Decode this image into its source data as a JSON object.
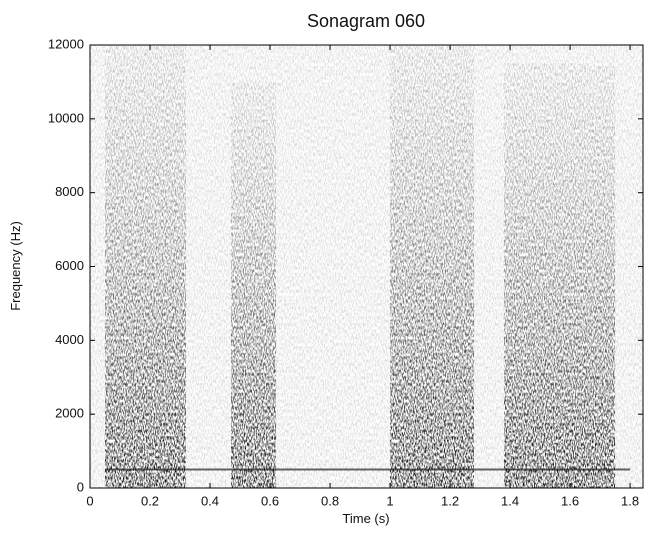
{
  "chart_data": {
    "type": "spectrogram",
    "title": "Sonagram 060",
    "x_label": "Time (s)",
    "y_label": "Frequency (Hz)",
    "xlim": [
      0,
      1.843
    ],
    "ylim": [
      0,
      12000
    ],
    "xticks": [
      0,
      0.2,
      0.4,
      0.6,
      0.8,
      1,
      1.2,
      1.4,
      1.6,
      1.8
    ],
    "yticks": [
      0,
      2000,
      4000,
      6000,
      8000,
      10000,
      12000
    ],
    "color": "#000000",
    "bursts": [
      {
        "start": 0.05,
        "end": 0.32,
        "top": 12000
      },
      {
        "start": 0.47,
        "end": 0.62,
        "top": 11000
      },
      {
        "start": 1.0,
        "end": 1.28,
        "top": 12000
      },
      {
        "start": 1.38,
        "end": 1.75,
        "top": 11500
      }
    ],
    "hum": {
      "start": 0.05,
      "end": 1.8,
      "frequency": 500
    }
  }
}
